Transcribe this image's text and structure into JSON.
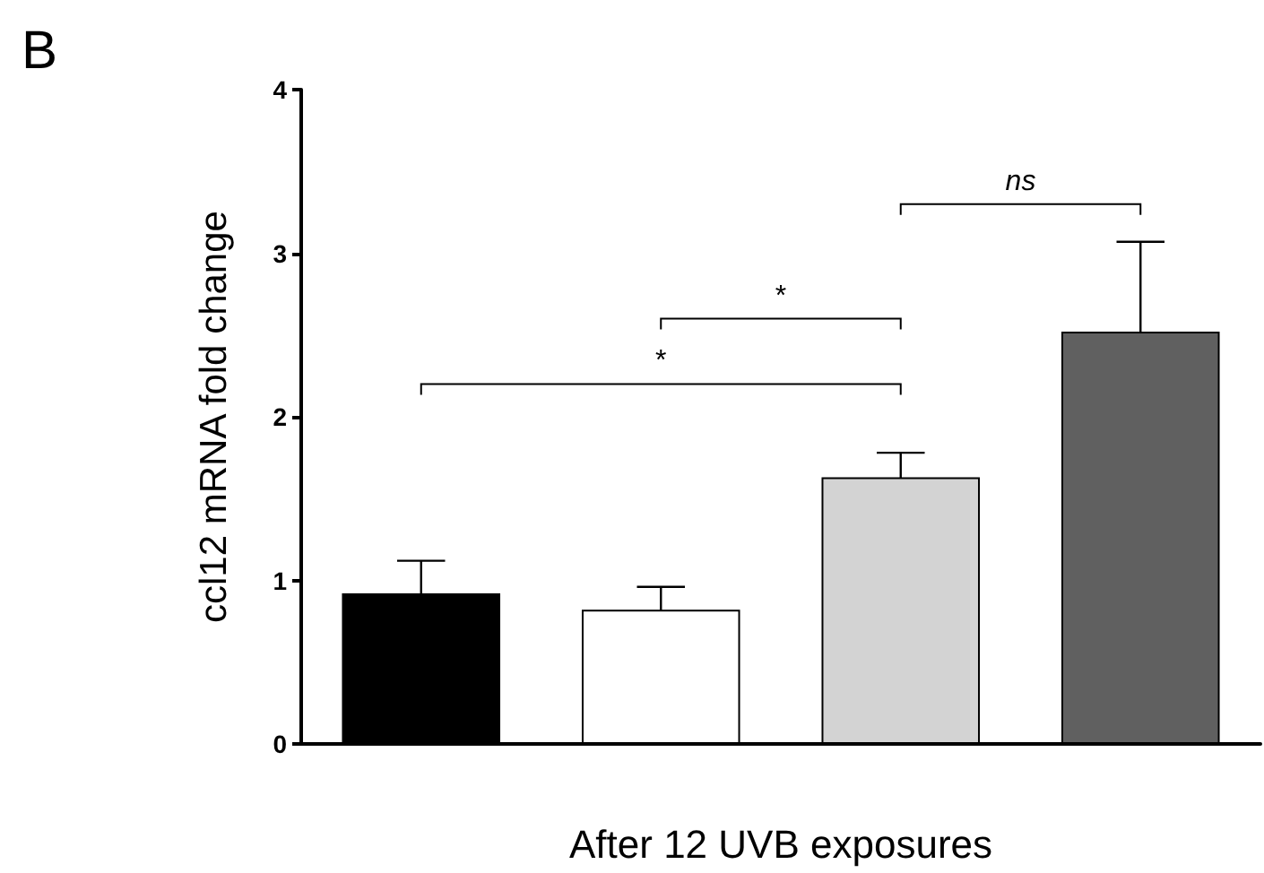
{
  "chart_data": {
    "type": "bar",
    "xlabel": "After 12 UVB exposures",
    "ylabel": "ccl12 mRNA fold change",
    "categories": [
      null,
      null,
      null,
      null
    ],
    "values": [
      0.92,
      0.82,
      1.63,
      2.52
    ],
    "colors": [
      "#000000",
      "#ffffff",
      "#d3d3d3",
      "#606060"
    ],
    "errors": [
      0.2,
      0.14,
      0.15,
      0.55
    ],
    "ylim": [
      0,
      4
    ],
    "yticks": [
      0,
      1,
      2,
      3,
      4
    ],
    "grid": false,
    "annotations": [
      "B",
      "*",
      "*",
      "ns"
    ]
  }
}
